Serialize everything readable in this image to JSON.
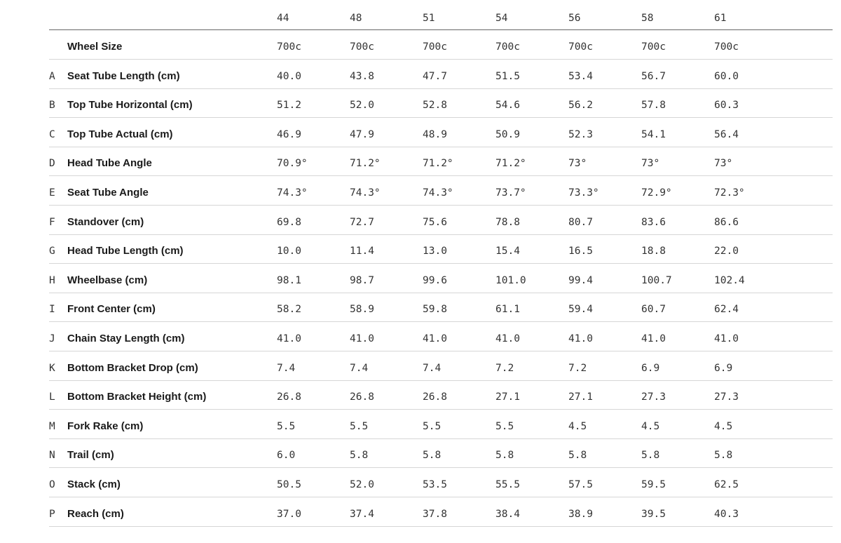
{
  "header": {
    "columns": [
      "44",
      "48",
      "51",
      "54",
      "56",
      "58",
      "61"
    ]
  },
  "rows": [
    {
      "label": "Wheel Size",
      "values": [
        "700c",
        "700c",
        "700c",
        "700c",
        "700c",
        "700c",
        "700c"
      ]
    },
    {
      "letter": "A",
      "label": "Seat Tube Length (cm)",
      "values": [
        "40.0",
        "43.8",
        "47.7",
        "51.5",
        "53.4",
        "56.7",
        "60.0"
      ]
    },
    {
      "letter": "B",
      "label": "Top Tube Horizontal (cm)",
      "values": [
        "51.2",
        "52.0",
        "52.8",
        "54.6",
        "56.2",
        "57.8",
        "60.3"
      ]
    },
    {
      "letter": "C",
      "label": "Top Tube Actual (cm)",
      "values": [
        "46.9",
        "47.9",
        "48.9",
        "50.9",
        "52.3",
        "54.1",
        "56.4"
      ]
    },
    {
      "letter": "D",
      "label": "Head Tube Angle",
      "values": [
        "70.9°",
        "71.2°",
        "71.2°",
        "71.2°",
        "73°",
        "73°",
        "73°"
      ]
    },
    {
      "letter": "E",
      "label": "Seat Tube Angle",
      "values": [
        "74.3°",
        "74.3°",
        "74.3°",
        "73.7°",
        "73.3°",
        "72.9°",
        "72.3°"
      ]
    },
    {
      "letter": "F",
      "label": "Standover (cm)",
      "values": [
        "69.8",
        "72.7",
        "75.6",
        "78.8",
        "80.7",
        "83.6",
        "86.6"
      ]
    },
    {
      "letter": "G",
      "label": "Head Tube Length (cm)",
      "values": [
        "10.0",
        "11.4",
        "13.0",
        "15.4",
        "16.5",
        "18.8",
        "22.0"
      ]
    },
    {
      "letter": "H",
      "label": "Wheelbase (cm)",
      "values": [
        "98.1",
        "98.7",
        "99.6",
        "101.0",
        "99.4",
        "100.7",
        "102.4"
      ]
    },
    {
      "letter": "I",
      "label": "Front Center (cm)",
      "values": [
        "58.2",
        "58.9",
        "59.8",
        "61.1",
        "59.4",
        "60.7",
        "62.4"
      ]
    },
    {
      "letter": "J",
      "label": "Chain Stay Length (cm)",
      "values": [
        "41.0",
        "41.0",
        "41.0",
        "41.0",
        "41.0",
        "41.0",
        "41.0"
      ]
    },
    {
      "letter": "K",
      "label": "Bottom Bracket Drop (cm)",
      "values": [
        "7.4",
        "7.4",
        "7.4",
        "7.2",
        "7.2",
        "6.9",
        "6.9"
      ]
    },
    {
      "letter": "L",
      "label": "Bottom Bracket Height (cm)",
      "values": [
        "26.8",
        "26.8",
        "26.8",
        "27.1",
        "27.1",
        "27.3",
        "27.3"
      ]
    },
    {
      "letter": "M",
      "label": "Fork Rake (cm)",
      "values": [
        "5.5",
        "5.5",
        "5.5",
        "5.5",
        "4.5",
        "4.5",
        "4.5"
      ]
    },
    {
      "letter": "N",
      "label": "Trail (cm)",
      "values": [
        "6.0",
        "5.8",
        "5.8",
        "5.8",
        "5.8",
        "5.8",
        "5.8"
      ]
    },
    {
      "letter": "O",
      "label": "Stack (cm)",
      "values": [
        "50.5",
        "52.0",
        "53.5",
        "55.5",
        "57.5",
        "59.5",
        "62.5"
      ]
    },
    {
      "letter": "P",
      "label": "Reach (cm)",
      "values": [
        "37.0",
        "37.4",
        "37.8",
        "38.4",
        "38.9",
        "39.5",
        "40.3"
      ]
    }
  ]
}
